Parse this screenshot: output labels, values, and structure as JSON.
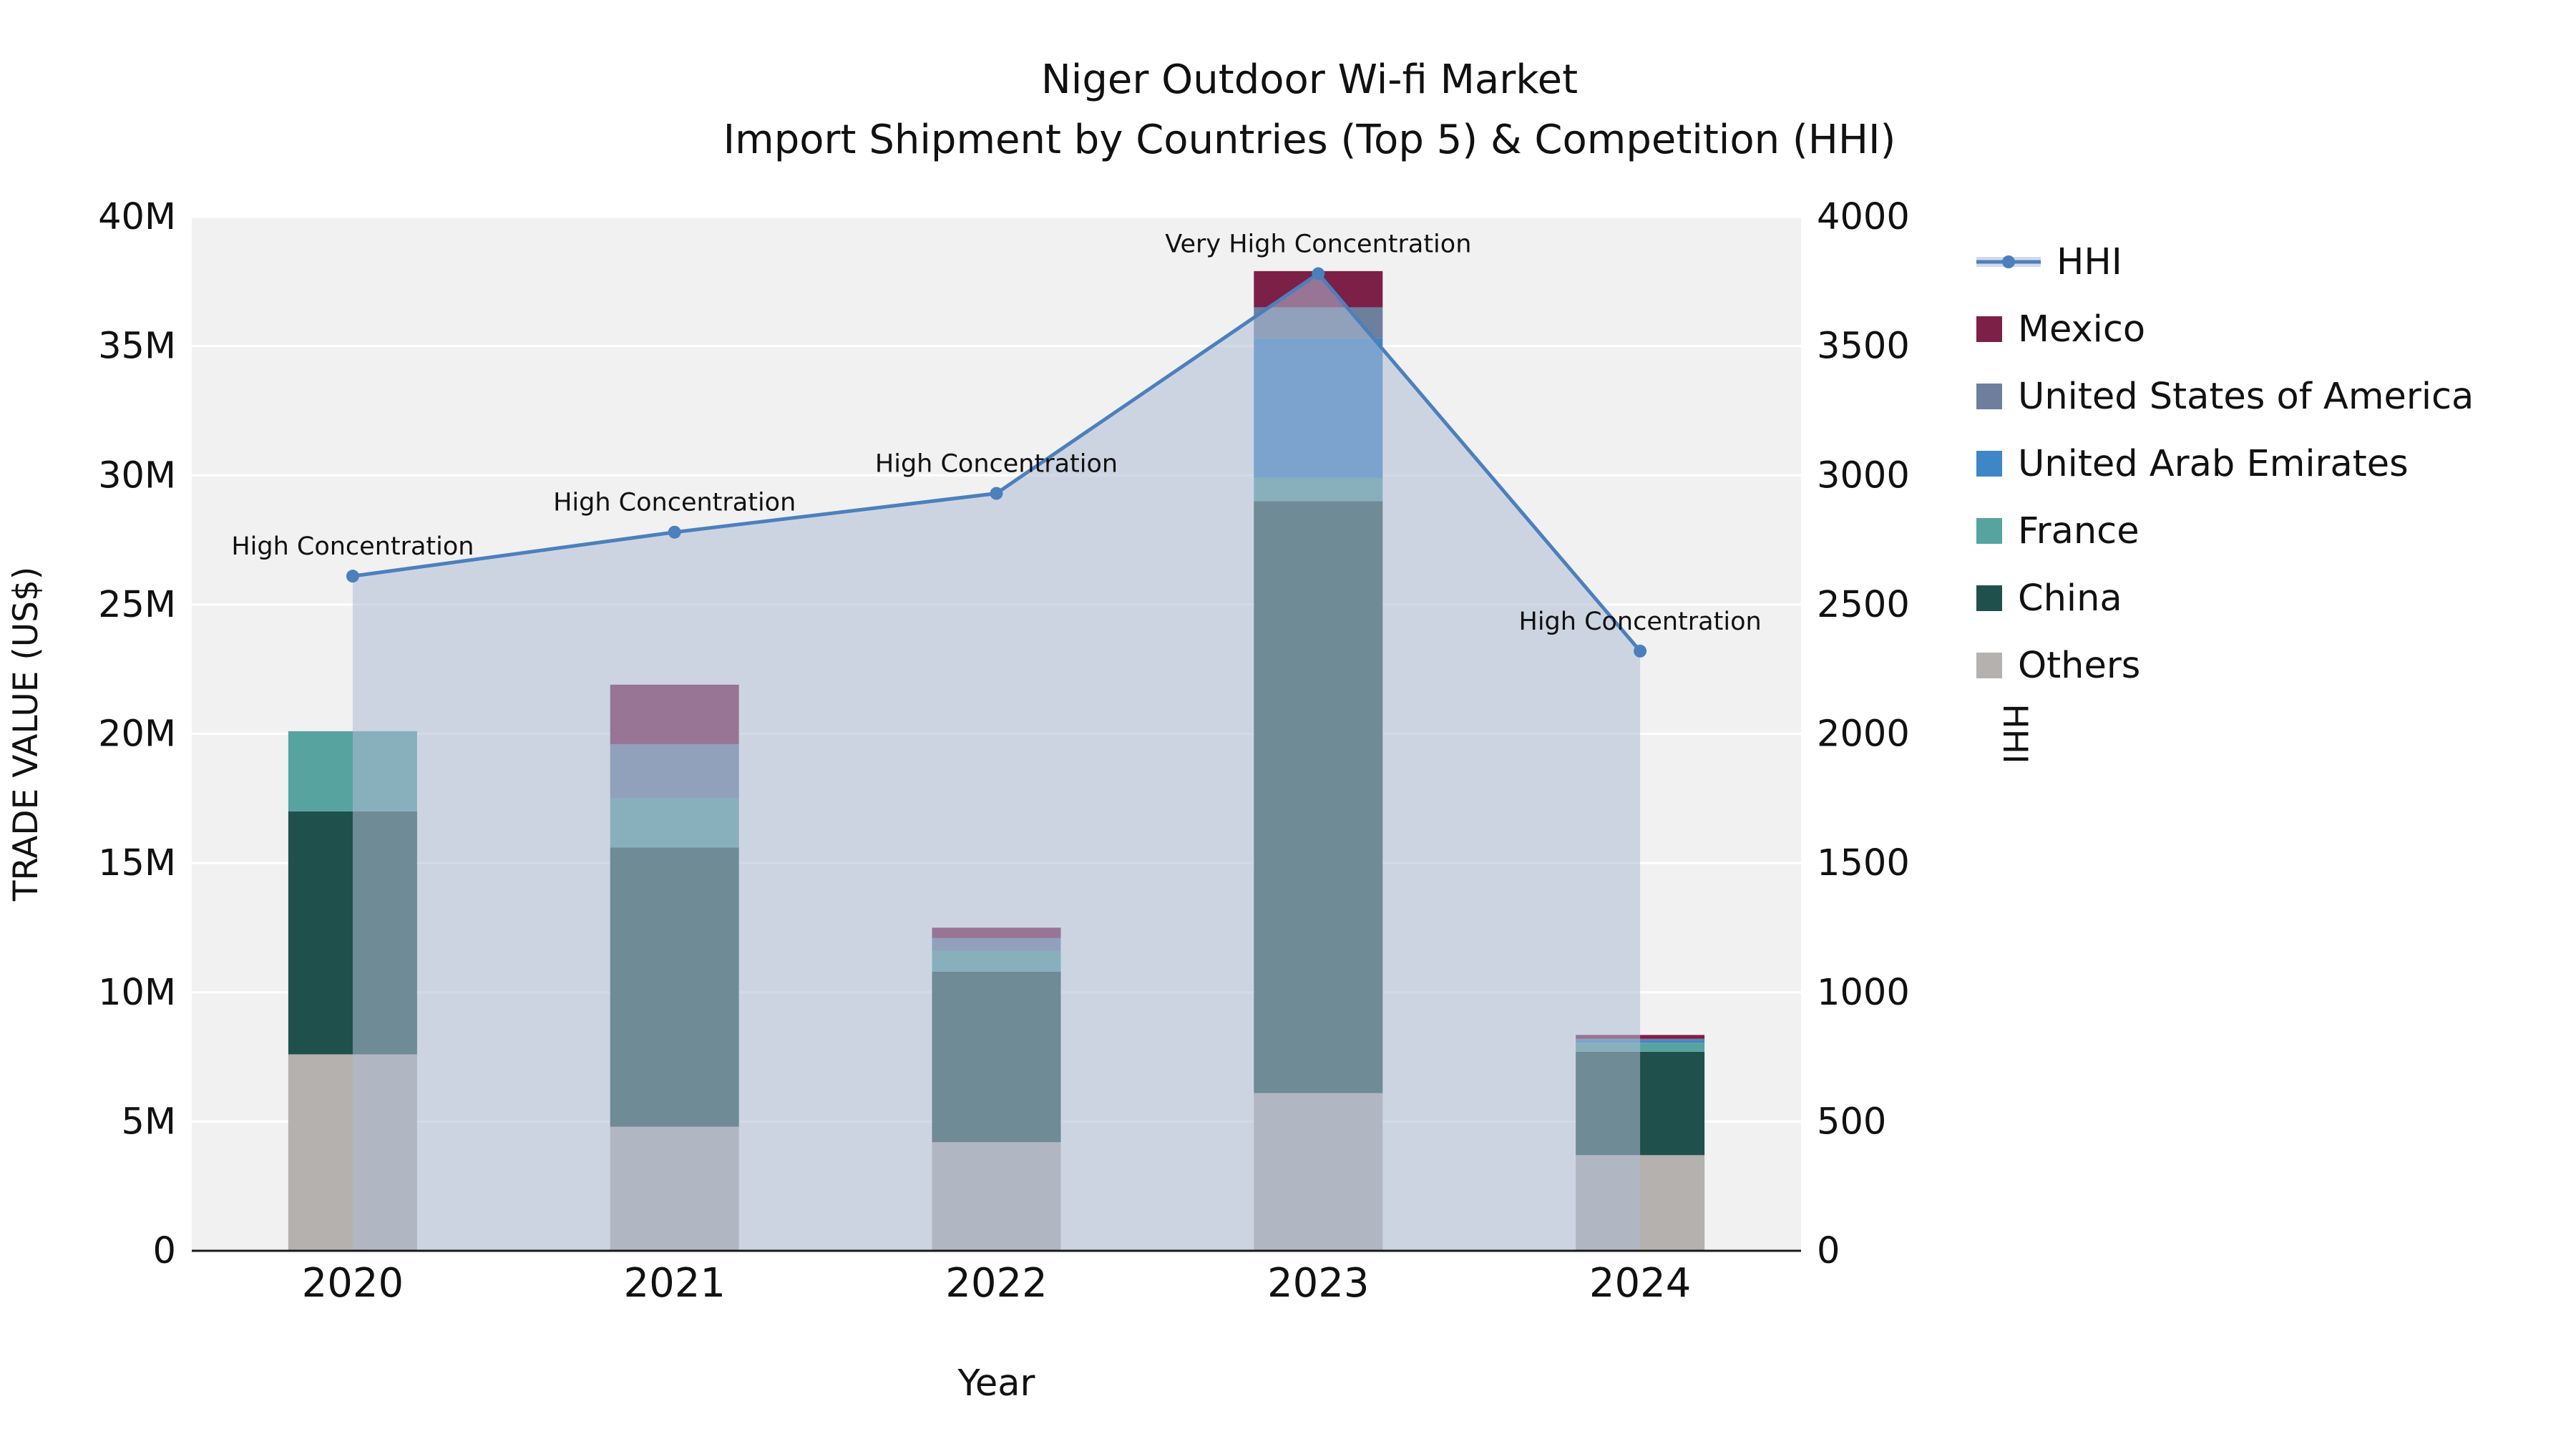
{
  "chart_data": {
    "type": "bar",
    "combo": "stacked-bar + line (dual axis) with shaded area under line",
    "title": "Niger Outdoor Wi-fi Market",
    "subtitle": "Import Shipment by Countries (Top 5) & Competition (HHI)",
    "xlabel": "Year",
    "ylabel_left": "TRADE VALUE (US$)",
    "ylabel_right": "HHI",
    "categories": [
      "2020",
      "2021",
      "2022",
      "2023",
      "2024"
    ],
    "values_unit": "millions USD",
    "y_left": {
      "max": 40,
      "tick_values": [
        0,
        5,
        10,
        15,
        20,
        25,
        30,
        35,
        40
      ],
      "tick_labels": [
        "0",
        "5M",
        "10M",
        "15M",
        "20M",
        "25M",
        "30M",
        "35M",
        "40M"
      ]
    },
    "y_right": {
      "max": 4000,
      "tick_values": [
        0,
        500,
        1000,
        1500,
        2000,
        2500,
        3000,
        3500,
        4000
      ],
      "tick_labels": [
        "0",
        "500",
        "1000",
        "1500",
        "2000",
        "2500",
        "3000",
        "3500",
        "4000"
      ]
    },
    "stack_order": [
      "Others",
      "China",
      "France",
      "United Arab Emirates",
      "United States of America",
      "Mexico"
    ],
    "series": [
      {
        "name": "Others",
        "color": "#b4b1ae",
        "values": [
          7.6,
          4.8,
          4.2,
          6.1,
          3.7
        ]
      },
      {
        "name": "China",
        "color": "#20504c",
        "values": [
          9.4,
          10.8,
          6.6,
          22.9,
          4.0
        ]
      },
      {
        "name": "France",
        "color": "#57a39f",
        "values": [
          3.1,
          1.9,
          0.8,
          0.9,
          0.35
        ]
      },
      {
        "name": "United Arab Emirates",
        "color": "#3f86c6",
        "values": [
          0,
          0,
          0,
          5.4,
          0.1
        ]
      },
      {
        "name": "United States of America",
        "color": "#6e7e9d",
        "values": [
          0,
          2.1,
          0.5,
          1.2,
          0.05
        ]
      },
      {
        "name": "Mexico",
        "color": "#7c2048",
        "values": [
          0,
          2.3,
          0.4,
          1.4,
          0.15
        ]
      }
    ],
    "hhi": {
      "name": "HHI",
      "line_color": "#4b80bd",
      "area_fill": "#aebcd3",
      "area_opacity": 0.55,
      "values": [
        2610,
        2780,
        2930,
        3780,
        2320
      ],
      "annotations": [
        "High Concentration",
        "High Concentration",
        "High Concentration",
        "Very High Concentration",
        "High Concentration"
      ]
    },
    "legend": [
      {
        "label": "HHI",
        "color": "#4b80bd",
        "type": "line"
      },
      {
        "label": "Mexico",
        "color": "#7c2048",
        "type": "swatch"
      },
      {
        "label": "United States of America",
        "color": "#6e7e9d",
        "type": "swatch"
      },
      {
        "label": "United Arab Emirates",
        "color": "#3f86c6",
        "type": "swatch"
      },
      {
        "label": "France",
        "color": "#57a39f",
        "type": "swatch"
      },
      {
        "label": "China",
        "color": "#20504c",
        "type": "swatch"
      },
      {
        "label": "Others",
        "color": "#b4b1ae",
        "type": "swatch"
      }
    ],
    "style": {
      "plot_bg": "#f1f1f2",
      "grid_color": "#ffffff",
      "spine_color": "#1a1a1a",
      "text_color": "#111111"
    }
  }
}
